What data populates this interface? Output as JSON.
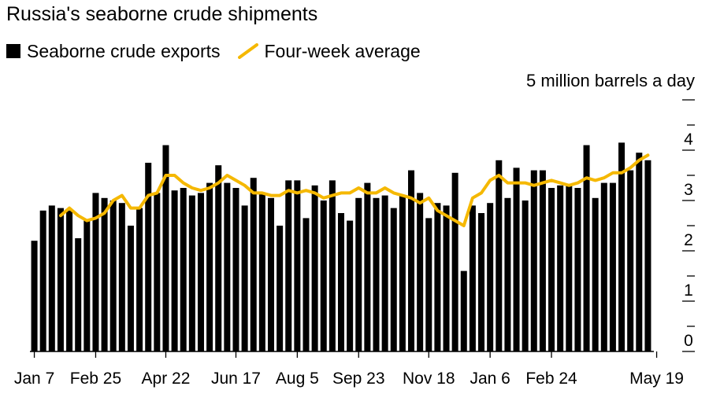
{
  "chart_data": {
    "type": "bar",
    "title": "Russia's seaborne crude shipments",
    "unit_label": "5 million barrels a day",
    "legend": [
      {
        "name": "Seaborne crude exports",
        "kind": "bar",
        "color": "#000000"
      },
      {
        "name": "Four-week average",
        "kind": "line",
        "color": "#f5b800"
      }
    ],
    "ylim": [
      0,
      5
    ],
    "yticks": [
      0,
      1,
      2,
      3,
      4
    ],
    "xticks": [
      "Jan 7",
      "Feb 25",
      "Apr 22",
      "Jun 17",
      "Aug 5",
      "Sep 23",
      "Nov 18",
      "Jan 6",
      "Feb 24",
      "May 19"
    ],
    "xtick_positions": [
      0,
      7,
      15,
      23,
      30,
      37,
      45,
      52,
      59,
      71
    ],
    "series": [
      {
        "name": "Seaborne crude exports",
        "type": "bar",
        "values": [
          2.2,
          2.8,
          2.9,
          2.85,
          2.8,
          2.25,
          2.6,
          3.15,
          3.05,
          3.0,
          2.95,
          2.5,
          2.85,
          3.75,
          3.15,
          4.1,
          3.2,
          3.25,
          3.1,
          3.15,
          3.35,
          3.7,
          3.35,
          3.25,
          2.9,
          3.45,
          3.15,
          3.05,
          2.5,
          3.4,
          3.4,
          2.65,
          3.3,
          3.0,
          3.4,
          2.75,
          2.6,
          3.05,
          3.35,
          3.05,
          3.1,
          2.85,
          3.1,
          3.6,
          3.15,
          2.65,
          2.95,
          2.9,
          3.55,
          1.6,
          2.9,
          2.75,
          2.95,
          3.8,
          3.05,
          3.65,
          3.0,
          3.6,
          3.6,
          3.25,
          3.3,
          3.3,
          3.25,
          4.1,
          3.05,
          3.35,
          3.35,
          4.15,
          3.6,
          3.95,
          3.8
        ],
        "color": "#000000"
      },
      {
        "name": "Four-week average",
        "type": "line",
        "start_index": 3,
        "values": [
          2.7,
          2.85,
          2.7,
          2.6,
          2.65,
          2.75,
          3.0,
          3.1,
          2.85,
          2.85,
          3.1,
          3.15,
          3.5,
          3.5,
          3.35,
          3.25,
          3.2,
          3.25,
          3.35,
          3.5,
          3.4,
          3.3,
          3.15,
          3.15,
          3.1,
          3.1,
          3.2,
          3.15,
          3.2,
          3.15,
          3.05,
          3.1,
          3.15,
          3.15,
          3.25,
          3.15,
          3.15,
          3.25,
          3.15,
          3.1,
          3.05,
          2.95,
          3.05,
          2.8,
          2.7,
          2.6,
          2.5,
          3.05,
          3.15,
          3.4,
          3.5,
          3.35,
          3.35,
          3.35,
          3.3,
          3.35,
          3.4,
          3.35,
          3.3,
          3.35,
          3.45,
          3.4,
          3.45,
          3.55,
          3.55,
          3.65,
          3.8,
          3.9
        ],
        "color": "#f5b800"
      }
    ]
  }
}
